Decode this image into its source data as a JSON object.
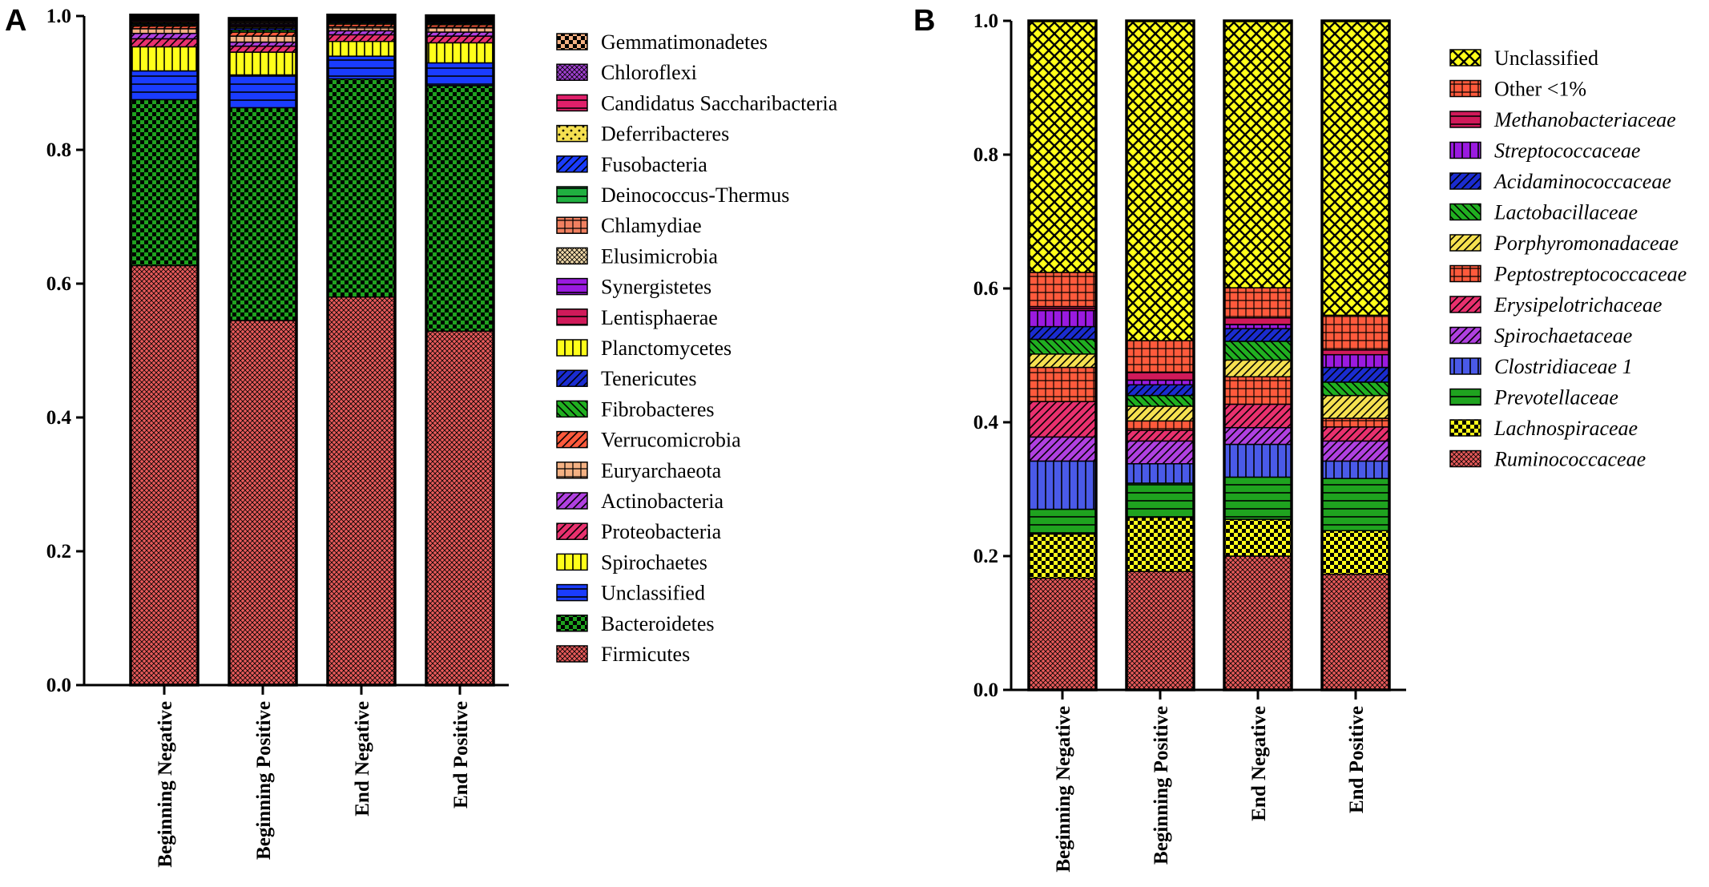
{
  "panels": {
    "a": {
      "letter": "A"
    },
    "b": {
      "letter": "B"
    }
  },
  "chart_data": [
    {
      "panel": "A",
      "type": "bar",
      "stacked": true,
      "categories": [
        "Beginning Negative",
        "Beginning Positive",
        "End Negative",
        "End Positive"
      ],
      "ylim": [
        0,
        1.0
      ],
      "yticks": [
        "0.0",
        "0.2",
        "0.4",
        "0.6",
        "0.8",
        "1.0"
      ],
      "xlabel": "",
      "ylabel": "",
      "legend_position": "right",
      "series": [
        {
          "name": "Firmicutes",
          "color": "#e85a5a",
          "pattern": "crosshatch",
          "values": [
            0.627,
            0.545,
            0.58,
            0.529
          ]
        },
        {
          "name": "Bacteroidetes",
          "color": "#1fa31f",
          "pattern": "checker",
          "values": [
            0.248,
            0.318,
            0.326,
            0.367
          ]
        },
        {
          "name": "Unclassified",
          "color": "#1a3cff",
          "pattern": "hstripes",
          "values": [
            0.043,
            0.049,
            0.034,
            0.034
          ]
        },
        {
          "name": "Spirochaetes",
          "color": "#ffff1a",
          "pattern": "vstripes",
          "values": [
            0.036,
            0.034,
            0.022,
            0.03
          ]
        },
        {
          "name": "Proteobacteria",
          "color": "#e8306e",
          "pattern": "diag",
          "values": [
            0.012,
            0.009,
            0.01,
            0.01
          ]
        },
        {
          "name": "Actinobacteria",
          "color": "#b040e0",
          "pattern": "diag",
          "values": [
            0.008,
            0.006,
            0.006,
            0.006
          ]
        },
        {
          "name": "Euryarchaeota",
          "color": "#f4b183",
          "pattern": "grid",
          "values": [
            0.007,
            0.009,
            0.006,
            0.007
          ]
        },
        {
          "name": "Verrucomicrobia",
          "color": "#ff5a3c",
          "pattern": "diag",
          "values": [
            0.004,
            0.006,
            0.004,
            0.004
          ]
        },
        {
          "name": "Fibrobacteres",
          "color": "#20b020",
          "pattern": "diagr",
          "values": [
            0.002,
            0.003,
            0.002,
            0.002
          ]
        },
        {
          "name": "Tenericutes",
          "color": "#1a2cd0",
          "pattern": "diag",
          "values": [
            0.002,
            0.003,
            0.002,
            0.002
          ]
        },
        {
          "name": "Planctomycetes",
          "color": "#ffff1a",
          "pattern": "vstripes",
          "values": [
            0.002,
            0.002,
            0.001,
            0.001
          ]
        },
        {
          "name": "Lentisphaerae",
          "color": "#d01a5a",
          "pattern": "hstripes",
          "values": [
            0.002,
            0.002,
            0.001,
            0.001
          ]
        },
        {
          "name": "Synergistetes",
          "color": "#9a1ae0",
          "pattern": "hstripes",
          "values": [
            0.002,
            0.002,
            0.001,
            0.001
          ]
        },
        {
          "name": "Elusimicrobia",
          "color": "#f0d8a8",
          "pattern": "crosshatch",
          "values": [
            0.001,
            0.002,
            0.001,
            0.001
          ]
        },
        {
          "name": "Chlamydiae",
          "color": "#f08060",
          "pattern": "grid",
          "values": [
            0.001,
            0.002,
            0.001,
            0.001
          ]
        },
        {
          "name": "Deinococcus-Thermus",
          "color": "#20b040",
          "pattern": "hstripes",
          "values": [
            0.001,
            0.001,
            0.001,
            0.001
          ]
        },
        {
          "name": "Fusobacteria",
          "color": "#1a3cff",
          "pattern": "diag",
          "values": [
            0.001,
            0.001,
            0.001,
            0.001
          ]
        },
        {
          "name": "Deferribacteres",
          "color": "#f5e050",
          "pattern": "dots",
          "values": [
            0.001,
            0.001,
            0.001,
            0.001
          ]
        },
        {
          "name": "Candidatus Saccharibacteria",
          "color": "#e0206a",
          "pattern": "hstripes",
          "values": [
            0.0005,
            0.0005,
            0.0005,
            0.0005
          ]
        },
        {
          "name": "Chloroflexi",
          "color": "#a040d0",
          "pattern": "crosshatch",
          "values": [
            0.0005,
            0.0005,
            0.0005,
            0.0005
          ]
        },
        {
          "name": "Gemmatimonadetes",
          "color": "#f4b183",
          "pattern": "checker",
          "values": [
            0.0005,
            0.0005,
            0.0005,
            0.0005
          ]
        }
      ]
    },
    {
      "panel": "B",
      "type": "bar",
      "stacked": true,
      "categories": [
        "Beginning Negative",
        "Beginning Positive",
        "End Negative",
        "End Positive"
      ],
      "ylim": [
        0,
        1.0
      ],
      "yticks": [
        "0.0",
        "0.2",
        "0.4",
        "0.6",
        "0.8",
        "1.0"
      ],
      "xlabel": "",
      "ylabel": "",
      "legend_position": "right",
      "series": [
        {
          "name": "Ruminococcaceae",
          "italic": true,
          "color": "#e85a5a",
          "pattern": "crosshatch",
          "values": [
            0.167,
            0.177,
            0.2,
            0.173
          ]
        },
        {
          "name": "Lachnospiraceae",
          "italic": true,
          "color": "#ffff1a",
          "pattern": "checker",
          "values": [
            0.066,
            0.081,
            0.055,
            0.065
          ]
        },
        {
          "name": "Prevotellaceae",
          "italic": true,
          "color": "#1fa31f",
          "pattern": "hstripes",
          "values": [
            0.037,
            0.051,
            0.063,
            0.078
          ]
        },
        {
          "name": "Clostridiaceae 1",
          "italic": true,
          "color": "#4a5ae8",
          "pattern": "vstripes",
          "values": [
            0.072,
            0.029,
            0.049,
            0.026
          ]
        },
        {
          "name": "Spirochaetaceae",
          "italic": true,
          "color": "#b040e0",
          "pattern": "diag",
          "values": [
            0.036,
            0.034,
            0.025,
            0.03
          ]
        },
        {
          "name": "Erysipelotrichaceae",
          "italic": true,
          "color": "#e8306e",
          "pattern": "diag",
          "values": [
            0.053,
            0.016,
            0.035,
            0.021
          ]
        },
        {
          "name": "Peptostreptococcaceae",
          "italic": true,
          "color": "#ff5a3c",
          "pattern": "grid",
          "values": [
            0.051,
            0.014,
            0.041,
            0.013
          ]
        },
        {
          "name": "Porphyromonadaceae",
          "italic": true,
          "color": "#f5e050",
          "pattern": "diag",
          "values": [
            0.02,
            0.022,
            0.025,
            0.034
          ]
        },
        {
          "name": "Lactobacillaceae",
          "italic": true,
          "color": "#20b020",
          "pattern": "diagr",
          "values": [
            0.022,
            0.016,
            0.028,
            0.02
          ]
        },
        {
          "name": "Acidaminococcaceae",
          "italic": true,
          "color": "#1a2cd0",
          "pattern": "diag",
          "values": [
            0.019,
            0.016,
            0.019,
            0.022
          ]
        },
        {
          "name": "Streptococcaceae",
          "italic": true,
          "color": "#9a1ae0",
          "pattern": "vstripes",
          "values": [
            0.024,
            0.007,
            0.006,
            0.019
          ]
        },
        {
          "name": "Methanobacteriaceae",
          "italic": true,
          "color": "#d01a5a",
          "pattern": "hstripes",
          "values": [
            0.006,
            0.012,
            0.01,
            0.007
          ]
        },
        {
          "name": "Other <1%",
          "italic": false,
          "color": "#ff5a3c",
          "pattern": "grid",
          "values": [
            0.051,
            0.047,
            0.045,
            0.052
          ]
        },
        {
          "name": "Unclassified",
          "italic": false,
          "color": "#ffff1a",
          "pattern": "diamond",
          "values": [
            0.376,
            0.478,
            0.399,
            0.44
          ]
        }
      ]
    }
  ]
}
